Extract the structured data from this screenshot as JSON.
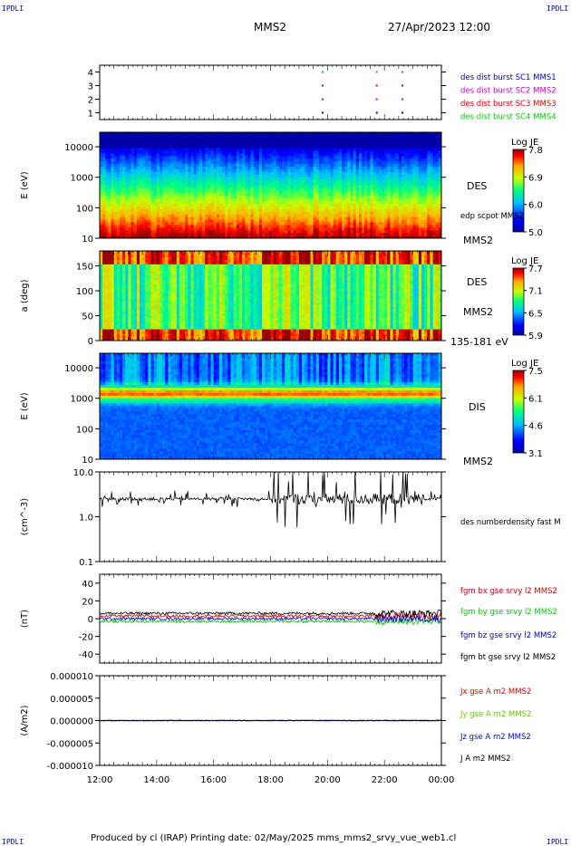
{
  "header": {
    "corner_tl": "IPDLI",
    "corner_tr": "IPDLI",
    "corner_bl": "IPDLI",
    "corner_br": "IPDLI",
    "spacecraft": "MMS2",
    "datetime": "27/Apr/2023 12:00"
  },
  "footer": {
    "text": "Produced by cl (IRAP)   Printing date: 02/May/2025   mms_mms2_srvy_vue_web1.cl"
  },
  "chart_data": [
    {
      "id": "burst",
      "type": "scatter",
      "ylim": [
        0.5,
        4.5
      ],
      "yticks": [
        "1",
        "2",
        "3",
        "4"
      ],
      "series": [
        {
          "name": "des dist burst SC1 MMS1",
          "color": "#0000cc",
          "y": 1,
          "x": [
            19.8,
            21.7,
            22.6
          ]
        },
        {
          "name": "des dist burst SC2 MMS2",
          "color": "#cc00cc",
          "y": 2,
          "x": [
            19.8,
            21.7,
            22.6
          ]
        },
        {
          "name": "des dist burst SC3 MMS3",
          "color": "#dd0000",
          "y": 3,
          "x": [
            19.8,
            21.7,
            22.6
          ]
        },
        {
          "name": "des dist burst SC4 MMS4",
          "color": "#00cc00",
          "y": 4,
          "x": [
            19.8,
            21.7,
            22.6
          ]
        }
      ]
    },
    {
      "id": "des_energy",
      "type": "heatmap",
      "ylabel": "E (eV)",
      "yscale": "log",
      "ylim": [
        10,
        30000
      ],
      "yticks": [
        "10",
        "100",
        "1000",
        "10000"
      ],
      "right_labels": [
        "DES",
        "edp scpot MMS2",
        "MMS2"
      ],
      "colorbar": {
        "title": "Log JE",
        "ticks": [
          "7.8",
          "6.9",
          "6.0",
          "5.0"
        ]
      }
    },
    {
      "id": "des_pitch",
      "type": "heatmap",
      "ylabel": "a (deg)",
      "ylim": [
        0,
        180
      ],
      "yticks": [
        "0",
        "50",
        "100",
        "150"
      ],
      "right_labels": [
        "DES",
        "MMS2",
        "135-181 eV"
      ],
      "colorbar": {
        "title": "Log JE",
        "ticks": [
          "7.7",
          "7.1",
          "6.5",
          "5.9"
        ]
      }
    },
    {
      "id": "dis_energy",
      "type": "heatmap",
      "ylabel": "E (eV)",
      "yscale": "log",
      "ylim": [
        10,
        30000
      ],
      "yticks": [
        "10",
        "100",
        "1000",
        "10000"
      ],
      "right_labels": [
        "DIS",
        "MMS2"
      ],
      "colorbar": {
        "title": "Log JE",
        "ticks": [
          "7.5",
          "6.1",
          "4.6",
          "3.1"
        ]
      }
    },
    {
      "id": "density",
      "type": "line",
      "ylabel": "(cm^-3)",
      "yscale": "log",
      "ylim": [
        0.1,
        10
      ],
      "yticks": [
        "0.1",
        "1.0",
        "10.0"
      ],
      "series": [
        {
          "name": "des numberdensity fast M",
          "color": "#000000",
          "baseline": 2.5
        }
      ]
    },
    {
      "id": "bfield",
      "type": "line",
      "ylabel": "(nT)",
      "ylim": [
        -50,
        50
      ],
      "yticks": [
        "-40",
        "-20",
        "0",
        "20",
        "40"
      ],
      "series": [
        {
          "name": "fgm bx gse srvy l2 MMS2",
          "color": "#dd0000",
          "baseline": 3
        },
        {
          "name": "fgm by gse srvy l2 MMS2",
          "color": "#00cc00",
          "baseline": -3
        },
        {
          "name": "fgm bz gse srvy l2 MMS2",
          "color": "#0000dd",
          "baseline": 0
        },
        {
          "name": "fgm bt gse srvy l2 MMS2",
          "color": "#000000",
          "baseline": 6
        }
      ]
    },
    {
      "id": "current",
      "type": "line",
      "ylabel": "(A/m2)",
      "ylim": [
        -1e-05,
        1e-05
      ],
      "yticks": [
        "-0.000010",
        "-0.000005",
        "0.000000",
        "0.000005",
        "0.000010"
      ],
      "series": [
        {
          "name": "Jx gse A m2 MMS2",
          "color": "#dd0000",
          "baseline": 0
        },
        {
          "name": "Jy gse A m2 MMS2",
          "color": "#66cc00",
          "baseline": 0
        },
        {
          "name": "Jz gse A m2 MMS2",
          "color": "#0000dd",
          "baseline": 0
        },
        {
          "name": "J A m2 MMS2",
          "color": "#000000",
          "baseline": 0
        }
      ]
    }
  ],
  "xaxis": {
    "range": [
      "12:00",
      "00:00"
    ],
    "tick_labels": [
      "12:00",
      "14:00",
      "16:00",
      "18:00",
      "20:00",
      "22:00",
      "00:00"
    ]
  }
}
